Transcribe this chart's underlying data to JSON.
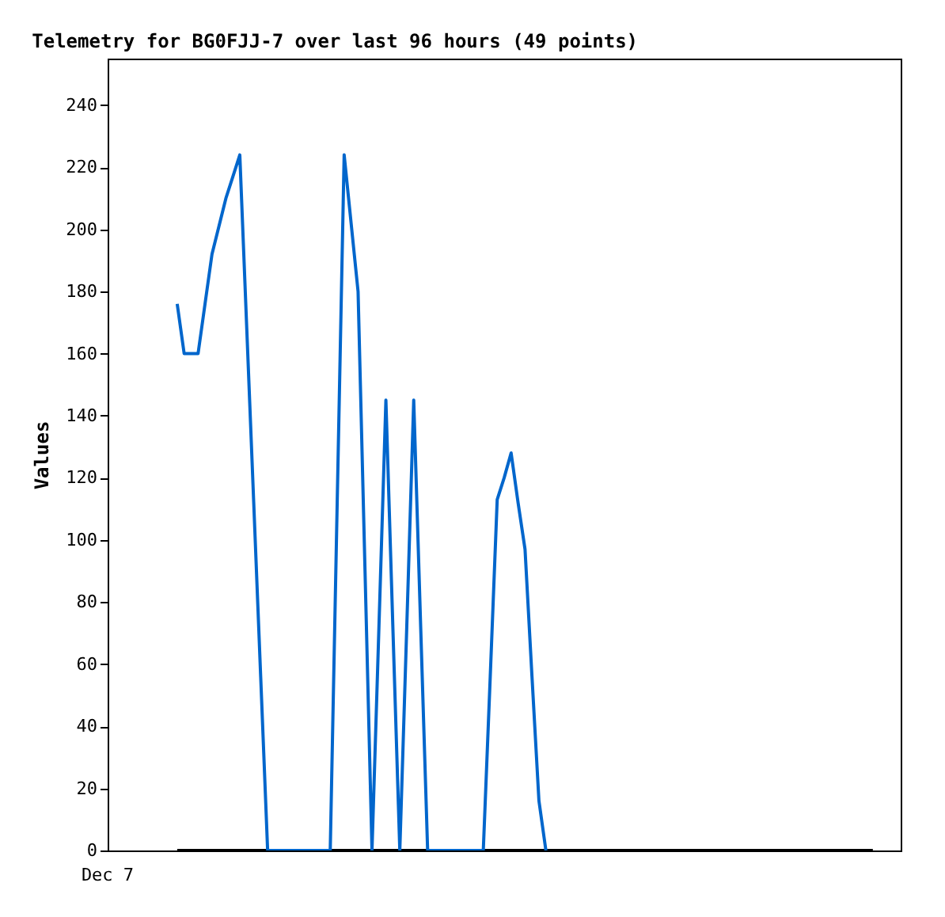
{
  "chart_data": {
    "type": "line",
    "title": "Telemetry for BG0FJJ-7 over last 96 hours (49 points)",
    "ylabel": "Values",
    "categories": [
      null,
      null,
      null,
      null,
      null,
      null,
      null,
      null,
      null,
      null,
      null,
      null,
      null,
      null,
      null,
      null,
      null,
      null,
      null,
      null,
      null,
      null,
      null,
      null,
      null,
      null,
      null,
      null,
      null,
      null,
      null,
      null,
      null,
      null,
      null,
      null,
      null,
      null,
      null,
      null,
      null,
      null,
      null,
      null,
      null,
      null,
      null,
      null,
      null,
      null,
      null,
      null,
      null,
      null,
      null,
      null,
      null,
      null,
      null,
      null,
      null,
      null,
      null,
      null,
      null,
      null,
      null,
      null,
      null,
      null,
      null,
      null,
      null,
      null,
      null,
      null,
      null,
      null,
      null,
      null,
      null,
      null,
      null,
      null,
      null,
      null,
      null,
      null,
      null,
      null,
      null,
      null,
      null,
      null,
      null,
      null,
      null,
      null,
      null,
      null,
      null,
      null,
      null,
      null,
      null,
      null,
      null,
      null,
      null,
      null,
      null,
      null,
      null,
      null,
      null
    ],
    "ylim": [
      0,
      255
    ],
    "yticks": [
      0,
      20,
      40,
      60,
      80,
      100,
      120,
      140,
      160,
      180,
      200,
      220,
      240
    ],
    "grid": false,
    "marker": "none",
    "line_style": "solid",
    "annotations": [
      "Dec 7"
    ],
    "series": [
      {
        "color": "#000000",
        "values": [
          null,
          null,
          null,
          null,
          null,
          null,
          null,
          null,
          null,
          null,
          0,
          0,
          0,
          0,
          0,
          0,
          0,
          0,
          0,
          0,
          0,
          0,
          0,
          0,
          0,
          0,
          0,
          0,
          0,
          0,
          0,
          0,
          0,
          0,
          0,
          0,
          0,
          0,
          0,
          0,
          0,
          0,
          0,
          0,
          0,
          0,
          0,
          0,
          0,
          0,
          0,
          0,
          0,
          0,
          0,
          0,
          0,
          0,
          0,
          0,
          0,
          0,
          0,
          0,
          0,
          0,
          0,
          0,
          0,
          0,
          0,
          0,
          0,
          0,
          0,
          0,
          0,
          0,
          0,
          0,
          0,
          0,
          0,
          0,
          0,
          0,
          0,
          0,
          0,
          0,
          0,
          0,
          0,
          0,
          0,
          0,
          0,
          0,
          0,
          0,
          0,
          0,
          0,
          0,
          0,
          0,
          0,
          0,
          0,
          0,
          0,
          null,
          null,
          null,
          null
        ]
      },
      {
        "color": "#0066cc",
        "values": [
          null,
          null,
          null,
          null,
          null,
          null,
          null,
          null,
          null,
          null,
          176,
          160,
          160,
          160,
          176,
          192,
          201,
          210,
          217,
          224,
          168,
          112,
          56,
          0,
          0,
          0,
          0,
          0,
          0,
          0,
          0,
          0,
          0,
          112,
          224,
          202,
          180,
          90,
          0,
          72,
          145,
          72,
          0,
          72,
          145,
          72,
          0,
          0,
          0,
          0,
          0,
          0,
          0,
          0,
          0,
          56,
          113,
          120,
          128,
          112,
          97,
          56,
          16,
          0,
          null,
          null,
          null,
          null,
          null,
          null,
          null,
          null,
          null,
          null,
          null,
          null,
          null,
          null,
          null,
          null,
          null,
          null,
          null,
          null,
          null,
          null,
          null,
          null,
          null,
          null,
          null,
          null,
          null,
          null,
          null,
          null,
          null,
          null,
          null,
          null,
          null,
          null,
          null,
          null,
          null,
          null,
          null,
          null,
          null,
          null,
          null,
          null,
          null,
          null,
          null
        ]
      }
    ]
  }
}
